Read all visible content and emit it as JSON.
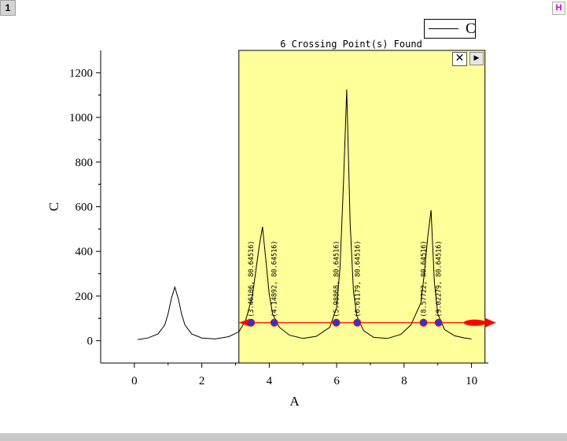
{
  "window": {
    "tab_number": "1",
    "h_button_label": "H"
  },
  "tool_panel": {
    "title": "6 Crossing Point(s) Found",
    "close_label": "✕",
    "next_label": "▶",
    "background_color": "#ffff99"
  },
  "legend": {
    "entries": [
      "C"
    ]
  },
  "chart_data": {
    "type": "line",
    "xlabel": "A",
    "ylabel": "C",
    "xlim": [
      -1,
      10.5
    ],
    "ylim": [
      -100,
      1300
    ],
    "xticks": [
      0,
      2,
      4,
      6,
      8,
      10
    ],
    "yticks": [
      0,
      200,
      400,
      600,
      800,
      1000,
      1200
    ],
    "grid": false,
    "legend_position": "top-right",
    "series": [
      {
        "name": "C",
        "color": "#000000",
        "x": [
          0.1,
          0.4,
          0.7,
          0.9,
          1.0,
          1.1,
          1.2,
          1.3,
          1.4,
          1.5,
          1.7,
          2.0,
          2.4,
          2.8,
          3.1,
          3.3,
          3.5,
          3.6,
          3.7,
          3.8,
          3.9,
          4.0,
          4.1,
          4.3,
          4.6,
          5.0,
          5.4,
          5.8,
          6.0,
          6.1,
          6.2,
          6.3,
          6.4,
          6.5,
          6.6,
          6.8,
          7.1,
          7.5,
          7.9,
          8.2,
          8.5,
          8.6,
          8.7,
          8.8,
          8.9,
          9.0,
          9.2,
          9.5,
          9.8,
          10.0
        ],
        "y": [
          5,
          12,
          30,
          70,
          120,
          190,
          240,
          190,
          120,
          70,
          30,
          12,
          8,
          18,
          40,
          90,
          200,
          310,
          420,
          510,
          360,
          210,
          120,
          60,
          25,
          10,
          20,
          60,
          150,
          330,
          700,
          1125,
          530,
          220,
          110,
          45,
          15,
          10,
          28,
          70,
          170,
          300,
          460,
          585,
          260,
          120,
          50,
          22,
          12,
          8
        ]
      }
    ],
    "crossing_level": 80.64516,
    "crossing_line_range": [
      3.1,
      10.4
    ],
    "crossing_points": [
      {
        "x": 3.46106,
        "y": 80.64516,
        "label": "(3.46106, 80.64516)"
      },
      {
        "x": 4.14892,
        "y": 80.64516,
        "label": "(4.14892, 80.64516)"
      },
      {
        "x": 5.98868,
        "y": 80.64516,
        "label": "(5.98868, 80.64516)"
      },
      {
        "x": 6.61179,
        "y": 80.64516,
        "label": "(6.61179, 80.64516)"
      },
      {
        "x": 8.57722,
        "y": 80.64516,
        "label": "(8.57722, 80.64516)"
      },
      {
        "x": 9.02279,
        "y": 80.64516,
        "label": "(9.02279, 80.64516)"
      }
    ],
    "crossing_line_color": "#ff0000",
    "crossing_marker_color": "#3333cc"
  }
}
